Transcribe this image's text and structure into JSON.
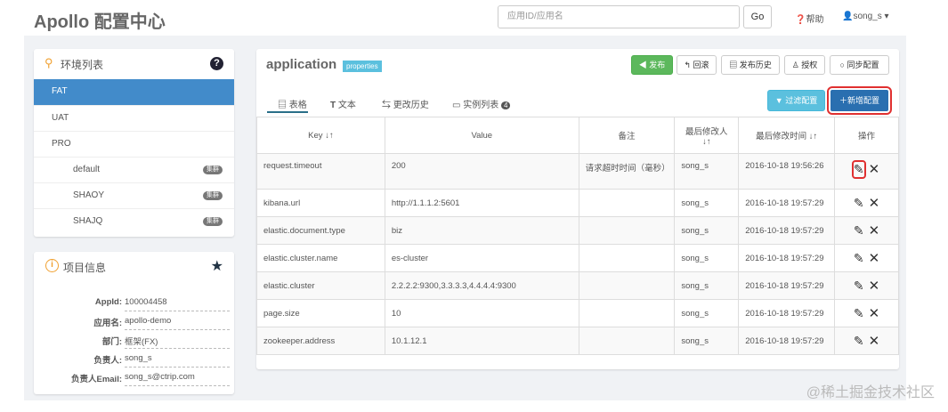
{
  "header": {
    "brand": "Apollo 配置中心",
    "search_placeholder": "应用ID/应用名",
    "go": "Go",
    "help": "帮助",
    "user": "song_s"
  },
  "env": {
    "title": "环境列表",
    "items": [
      {
        "label": "FAT",
        "active": true
      },
      {
        "label": "UAT"
      },
      {
        "label": "PRO"
      }
    ],
    "clusters": [
      {
        "label": "default",
        "badge": "集群"
      },
      {
        "label": "SHAOY",
        "badge": "集群"
      },
      {
        "label": "SHAJQ",
        "badge": "集群"
      }
    ]
  },
  "info": {
    "title": "项目信息",
    "rows": [
      {
        "label": "AppId:",
        "value": "100004458"
      },
      {
        "label": "应用名:",
        "value": "apollo-demo"
      },
      {
        "label": "部门:",
        "value": "框架(FX)"
      },
      {
        "label": "负责人:",
        "value": "song_s"
      },
      {
        "label": "负责人Email:",
        "value": "song_s@ctrip.com"
      }
    ]
  },
  "main": {
    "title": "application",
    "format": "properties",
    "buttons": {
      "publish": "发布",
      "rollback": "回滚",
      "history": "发布历史",
      "auth": "授权",
      "sync": "同步配置",
      "filter": "过滤配置",
      "add": "新增配置"
    },
    "tabs": [
      "表格",
      "文本",
      "更改历史",
      "实例列表"
    ],
    "instance_count": "4",
    "columns": [
      "Key",
      "Value",
      "备注",
      "最后修改人",
      "最后修改时间",
      "操作"
    ],
    "rows": [
      [
        "request.timeout",
        "200",
        "请求超时时间（毫秒）",
        "song_s",
        "2016-10-18 19:56:26"
      ],
      [
        "kibana.url",
        "http://1.1.1.2:5601",
        "",
        "song_s",
        "2016-10-18 19:57:29"
      ],
      [
        "elastic.document.type",
        "biz",
        "",
        "song_s",
        "2016-10-18 19:57:29"
      ],
      [
        "elastic.cluster.name",
        "es-cluster",
        "",
        "song_s",
        "2016-10-18 19:57:29"
      ],
      [
        "elastic.cluster",
        "2.2.2.2:9300,3.3.3.3,4.4.4.4:9300",
        "",
        "song_s",
        "2016-10-18 19:57:29"
      ],
      [
        "page.size",
        "10",
        "",
        "song_s",
        "2016-10-18 19:57:29"
      ],
      [
        "zookeeper.address",
        "10.1.12.1",
        "",
        "song_s",
        "2016-10-18 19:57:29"
      ]
    ]
  },
  "colors": {
    "primary": "#428bca",
    "success": "#5cb85c",
    "info": "#5bc0de",
    "highlight": "#e03030",
    "accent": "#f0a030"
  },
  "watermark": "@稀土掘金技术社区"
}
